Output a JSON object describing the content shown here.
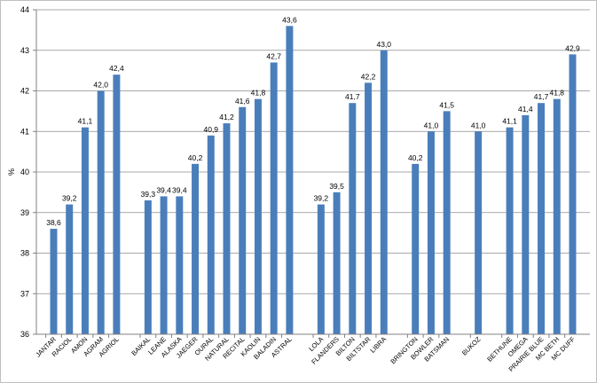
{
  "chart_data": {
    "type": "bar",
    "ylabel": "%",
    "ylim": [
      36,
      44
    ],
    "yticks": [
      36,
      37,
      38,
      39,
      40,
      41,
      42,
      43,
      44
    ],
    "grid": true,
    "legend": "none",
    "bar_color": "#4a7ebb",
    "groups": [
      {
        "categories": [
          "JANTAR",
          "RACIOL",
          "AMON",
          "AGRAM",
          "AGRIOL"
        ],
        "values": [
          38.6,
          39.2,
          41.1,
          42.0,
          42.4
        ],
        "labels": [
          "38,6",
          "39,2",
          "41,1",
          "42,0",
          "42,4"
        ]
      },
      {
        "categories": [
          "BAIKAL",
          "LEANE",
          "ALASKA",
          "JAEGER",
          "OURAL",
          "NATURAL",
          "RECITAL",
          "KAOLIN",
          "BALADIN",
          "ASTRAL"
        ],
        "values": [
          39.3,
          39.4,
          39.4,
          40.2,
          40.9,
          41.2,
          41.6,
          41.8,
          42.7,
          43.6
        ],
        "labels": [
          "39,3",
          "39,4",
          "39,4",
          "40,2",
          "40,9",
          "41,2",
          "41,6",
          "41,8",
          "42,7",
          "43,6"
        ]
      },
      {
        "categories": [
          "LOLA",
          "FLANDERS",
          "BILTON",
          "BILTSTAR",
          "LIBRA"
        ],
        "values": [
          39.2,
          39.5,
          41.7,
          42.2,
          43.0
        ],
        "labels": [
          "39,2",
          "39,5",
          "41,7",
          "42,2",
          "43,0"
        ]
      },
      {
        "categories": [
          "BRINGTON",
          "BOWLER",
          "BATSMAN"
        ],
        "values": [
          40.2,
          41.0,
          41.5
        ],
        "labels": [
          "40,2",
          "41,0",
          "41,5"
        ]
      },
      {
        "categories": [
          "BUKOZ"
        ],
        "values": [
          41.0
        ],
        "labels": [
          "41,0"
        ]
      },
      {
        "categories": [
          "BETHUNE",
          "OMEGA",
          "PRAIRIE BLUE",
          "MC BETH",
          "MC DUFF"
        ],
        "values": [
          41.1,
          41.4,
          41.7,
          41.8,
          42.9
        ],
        "labels": [
          "41,1",
          "41,4",
          "41,7",
          "41,8",
          "42,9"
        ]
      }
    ]
  }
}
